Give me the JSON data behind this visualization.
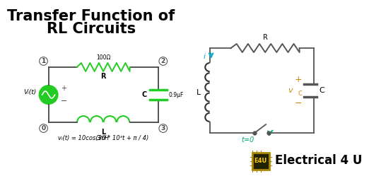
{
  "title_line1": "Transfer Function of",
  "title_line2": "RL Circuits",
  "title_fontsize": 15,
  "bg_color": "#ffffff",
  "circuit1": {
    "resistor_label": "R",
    "resistor_value": "100Ω",
    "inductor_label": "L",
    "inductor_value": "3mH",
    "capacitor_label": "C",
    "capacitor_value": "0.9μF",
    "source_label": "Vᵢ(t)",
    "equation": "vᵢ(t) = 10cos(30 * 10³t + π / 4)",
    "wire_color": "#444444",
    "resistor_color": "#22cc22",
    "inductor_color": "#22cc22",
    "capacitor_color": "#22cc22",
    "source_color": "#22cc22",
    "label_color": "#000000"
  },
  "circuit2": {
    "R_label": "R",
    "L_label": "L",
    "C_label": "C",
    "i_label": "i",
    "vc_label": "v",
    "vc_sub": "C",
    "t0_label": "t=0",
    "wire_color": "#555555",
    "R_color": "#555555",
    "L_color": "#333333",
    "C_color": "#555555",
    "i_color": "#11aacc",
    "vc_color": "#cc8800",
    "t0_color": "#00aa77",
    "plus_color": "#cc8800",
    "minus_color": "#cc8800",
    "label_color": "#000000"
  },
  "logo_text": "Electrical 4 U",
  "logo_color": "#000000",
  "e4u_bg": "#222200",
  "e4u_border": "#aa8800",
  "e4u_text_color": "#ffcc00"
}
